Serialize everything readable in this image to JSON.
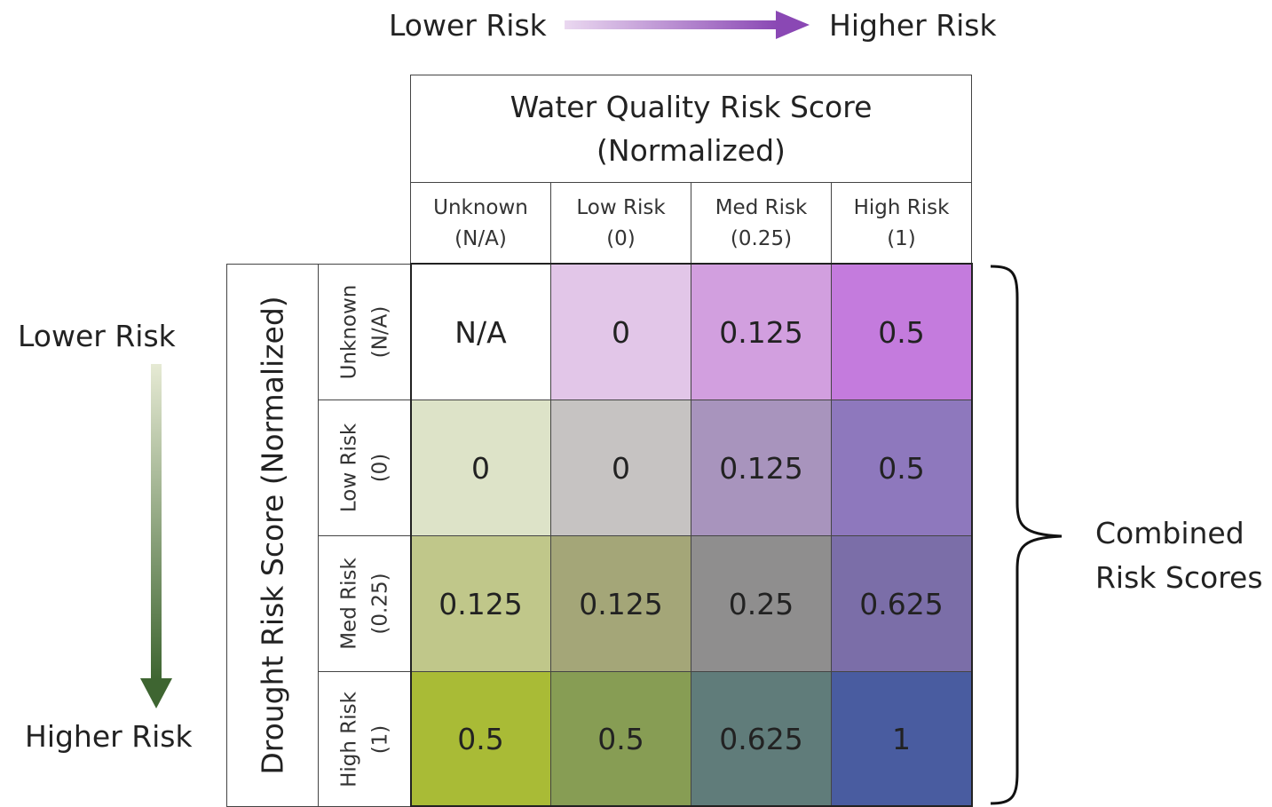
{
  "legend_top": {
    "left_label": "Lower Risk",
    "right_label": "Higher Risk",
    "colors": [
      "#ead8f0",
      "#8a48b4"
    ]
  },
  "legend_left": {
    "top_label": "Lower Risk",
    "bottom_label": "Higher Risk",
    "colors": [
      "#e6ead4",
      "#3e6531"
    ]
  },
  "column_header": {
    "title_line1": "Water Quality Risk Score",
    "title_line2": "(Normalized)",
    "columns": [
      {
        "line1": "Unknown",
        "line2": "(N/A)"
      },
      {
        "line1": "Low Risk",
        "line2": "(0)"
      },
      {
        "line1": "Med Risk",
        "line2": "(0.25)"
      },
      {
        "line1": "High Risk",
        "line2": "(1)"
      }
    ]
  },
  "row_header": {
    "title": "Drought Risk Score (Normalized)",
    "rows": [
      {
        "line1": "Unknown",
        "line2": "(N/A)"
      },
      {
        "line1": "Low Risk",
        "line2": "(0)"
      },
      {
        "line1": "Med Risk",
        "line2": "(0.25)"
      },
      {
        "line1": "High Risk",
        "line2": "(1)"
      }
    ]
  },
  "matrix": {
    "values": [
      [
        "N/A",
        "0",
        "0.125",
        "0.5"
      ],
      [
        "0",
        "0",
        "0.125",
        "0.5"
      ],
      [
        "0.125",
        "0.125",
        "0.25",
        "0.625"
      ],
      [
        "0.5",
        "0.5",
        "0.625",
        "1"
      ]
    ],
    "colors": [
      [
        "#ffffff",
        "#e2c6e8",
        "#d29fdf",
        "#c47bdd"
      ],
      [
        "#dde3c8",
        "#c6c3c2",
        "#a894bd",
        "#8e78bd"
      ],
      [
        "#c0c78a",
        "#a4a678",
        "#8f8e8e",
        "#7b6ea8"
      ],
      [
        "#a9bb36",
        "#879d54",
        "#607c7a",
        "#495ca0"
      ]
    ]
  },
  "bracket_label": {
    "line1": "Combined",
    "line2": "Risk Scores"
  }
}
